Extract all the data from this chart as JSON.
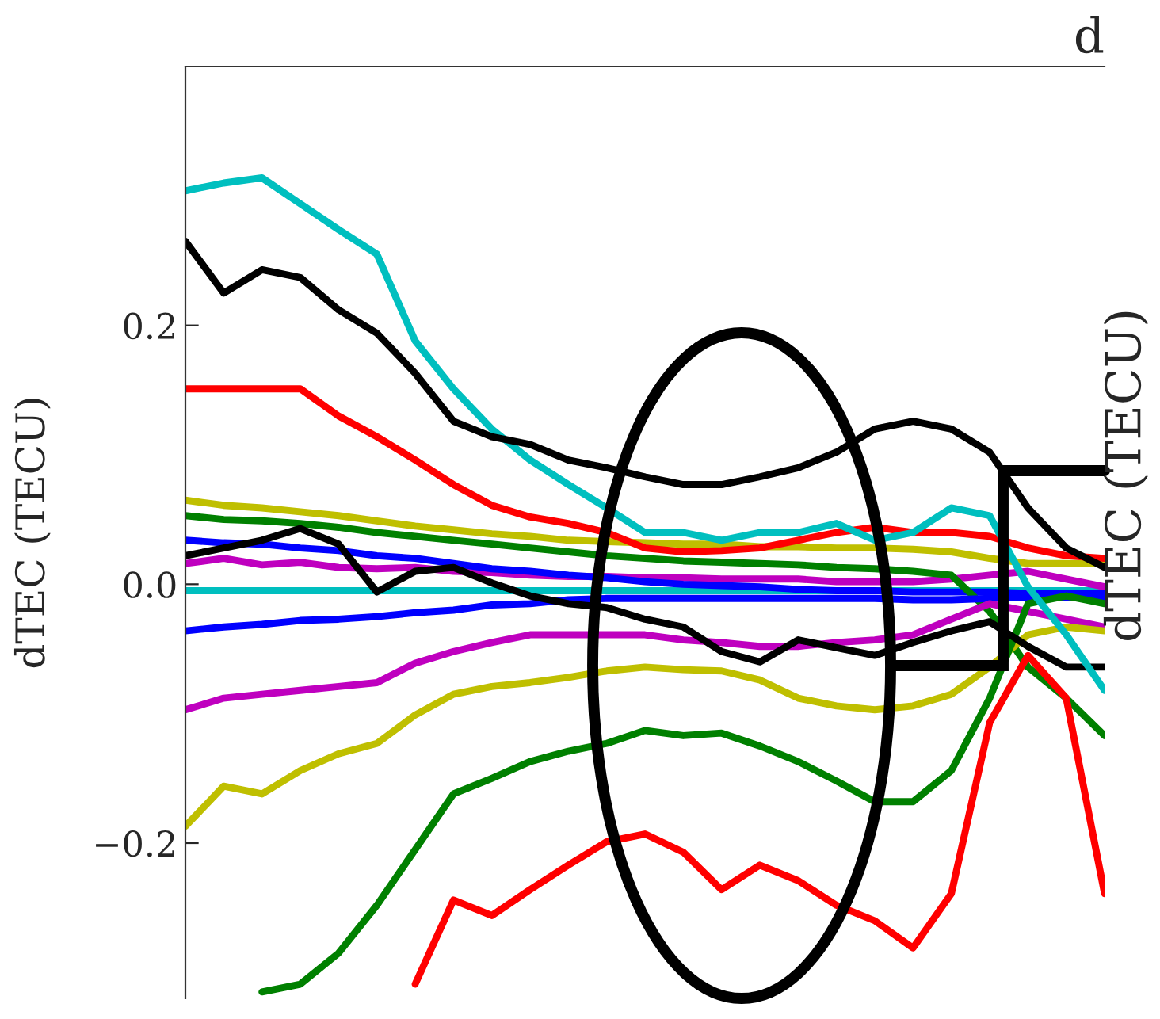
{
  "chart_data": {
    "type": "line",
    "title": "d",
    "ylabel": "dTEC (TECU)",
    "annotations": [
      "dTEC (TECU)"
    ],
    "categories": [
      null,
      null,
      null,
      null,
      null,
      null,
      null,
      null,
      null,
      null,
      null,
      null,
      null,
      null,
      null,
      null,
      null,
      null,
      null,
      null,
      null,
      null,
      null,
      null,
      null
    ],
    "ylim": [
      -0.32,
      0.4
    ],
    "yticks": [
      {
        "value": -0.2,
        "label": "−0.2"
      },
      {
        "value": 0,
        "label": "0.0"
      },
      {
        "value": 0.2,
        "label": "0.2"
      }
    ],
    "grid": false,
    "legend": false,
    "marker": "none",
    "line_style": "solid",
    "tick_labels": "y",
    "series": [
      {
        "color": "#00bfbf",
        "values": [
          -0.005,
          -0.005,
          -0.005,
          -0.005,
          -0.005,
          -0.005,
          -0.005,
          -0.005,
          -0.005,
          -0.005,
          -0.005,
          -0.005,
          -0.005,
          -0.005,
          -0.005,
          -0.005,
          -0.005,
          -0.005,
          -0.005,
          -0.005,
          -0.005,
          -0.005,
          -0.005,
          -0.005,
          -0.005
        ]
      },
      {
        "color": "#bf00bf",
        "values": [
          0.016,
          0.02,
          0.015,
          0.017,
          0.013,
          0.012,
          0.013,
          0.01,
          0.009,
          0.007,
          0.006,
          0.006,
          0.005,
          0.005,
          0.004,
          0.004,
          0.004,
          0.002,
          0.002,
          0.002,
          0.004,
          0.007,
          0.01,
          0.004,
          -0.002
        ]
      },
      {
        "color": "#0000ff",
        "values": [
          0.034,
          0.032,
          0.031,
          0.028,
          0.026,
          0.022,
          0.02,
          0.016,
          0.012,
          0.01,
          0.007,
          0.005,
          0.002,
          0,
          -0.001,
          -0.002,
          -0.004,
          -0.005,
          -0.005,
          -0.006,
          -0.006,
          -0.006,
          -0.007,
          -0.007,
          -0.007
        ]
      },
      {
        "color": "#bfbf00",
        "values": [
          0.065,
          0.061,
          0.059,
          0.056,
          0.053,
          0.049,
          0.045,
          0.042,
          0.039,
          0.037,
          0.034,
          0.033,
          0.032,
          0.031,
          0.031,
          0.029,
          0.029,
          0.028,
          0.028,
          0.027,
          0.025,
          0.02,
          0.016,
          0.016,
          0.016
        ]
      },
      {
        "color": "#008000",
        "values": [
          0.053,
          0.05,
          0.049,
          0.047,
          0.044,
          0.04,
          0.037,
          0.034,
          0.031,
          0.028,
          0.025,
          0.022,
          0.02,
          0.018,
          0.017,
          0.016,
          0.015,
          0.013,
          0.012,
          0.01,
          0.007,
          -0.021,
          -0.064,
          -0.088,
          -0.117
        ]
      },
      {
        "color": "#0000ff",
        "values": [
          -0.036,
          -0.033,
          -0.031,
          -0.028,
          -0.027,
          -0.025,
          -0.022,
          -0.02,
          -0.016,
          -0.015,
          -0.012,
          -0.011,
          -0.011,
          -0.011,
          -0.011,
          -0.011,
          -0.011,
          -0.011,
          -0.011,
          -0.012,
          -0.012,
          -0.011,
          -0.01,
          -0.01,
          -0.01
        ]
      },
      {
        "color": "#bf00bf",
        "values": [
          -0.097,
          -0.088,
          -0.085,
          -0.082,
          -0.079,
          -0.076,
          -0.061,
          -0.052,
          -0.045,
          -0.039,
          -0.039,
          -0.039,
          -0.039,
          -0.043,
          -0.045,
          -0.048,
          -0.048,
          -0.045,
          -0.043,
          -0.039,
          -0.027,
          -0.015,
          -0.021,
          -0.027,
          -0.033
        ]
      },
      {
        "color": "#bfbf00",
        "values": [
          -0.187,
          -0.156,
          -0.162,
          -0.144,
          -0.131,
          -0.123,
          -0.101,
          -0.085,
          -0.079,
          -0.076,
          -0.072,
          -0.067,
          -0.064,
          -0.066,
          -0.067,
          -0.074,
          -0.088,
          -0.094,
          -0.097,
          -0.094,
          -0.085,
          -0.064,
          -0.039,
          -0.033,
          -0.036
        ]
      },
      {
        "color": "#008000",
        "values": [
          null,
          null,
          -0.315,
          -0.309,
          -0.285,
          -0.248,
          -0.205,
          -0.162,
          -0.15,
          -0.137,
          -0.129,
          -0.123,
          -0.113,
          -0.117,
          -0.115,
          -0.125,
          -0.137,
          -0.152,
          -0.168,
          -0.168,
          -0.144,
          -0.088,
          -0.015,
          -0.009,
          -0.015
        ]
      },
      {
        "color": "#ff0000",
        "values": [
          null,
          null,
          null,
          null,
          null,
          null,
          -0.309,
          -0.244,
          -0.256,
          -0.236,
          -0.217,
          -0.199,
          -0.193,
          -0.207,
          -0.236,
          -0.217,
          -0.229,
          -0.248,
          -0.26,
          -0.281,
          -0.239,
          -0.107,
          -0.055,
          -0.088,
          -0.239
        ]
      },
      {
        "color": "#000000",
        "values": [
          0.022,
          0.028,
          0.034,
          0.043,
          0.031,
          -0.006,
          0.01,
          0.013,
          0.001,
          -0.009,
          -0.015,
          -0.018,
          -0.027,
          -0.033,
          -0.052,
          -0.06,
          -0.043,
          -0.049,
          -0.055,
          -0.045,
          -0.036,
          -0.029,
          -0.048,
          -0.064,
          -0.064
        ]
      },
      {
        "color": "#ff0000",
        "values": [
          0.151,
          0.151,
          0.151,
          0.151,
          0.13,
          0.114,
          0.096,
          0.077,
          0.061,
          0.052,
          0.047,
          0.04,
          0.028,
          0.025,
          0.026,
          0.028,
          0.034,
          0.04,
          0.044,
          0.04,
          0.04,
          0.037,
          0.028,
          0.022,
          0.02
        ]
      },
      {
        "color": "#00bfbf",
        "values": [
          0.304,
          0.31,
          0.314,
          0.294,
          0.274,
          0.255,
          0.188,
          0.151,
          0.12,
          0.096,
          0.077,
          0.059,
          0.04,
          0.04,
          0.034,
          0.04,
          0.04,
          0.047,
          0.034,
          0.04,
          0.059,
          0.053,
          -0.002,
          -0.039,
          -0.082
        ]
      },
      {
        "color": "#000000",
        "values": [
          0.265,
          0.225,
          0.243,
          0.237,
          0.212,
          0.194,
          0.163,
          0.126,
          0.114,
          0.108,
          0.096,
          0.09,
          0.083,
          0.077,
          0.077,
          0.083,
          0.09,
          0.102,
          0.12,
          0.126,
          0.12,
          0.102,
          0.059,
          0.028,
          0.013
        ]
      }
    ]
  }
}
